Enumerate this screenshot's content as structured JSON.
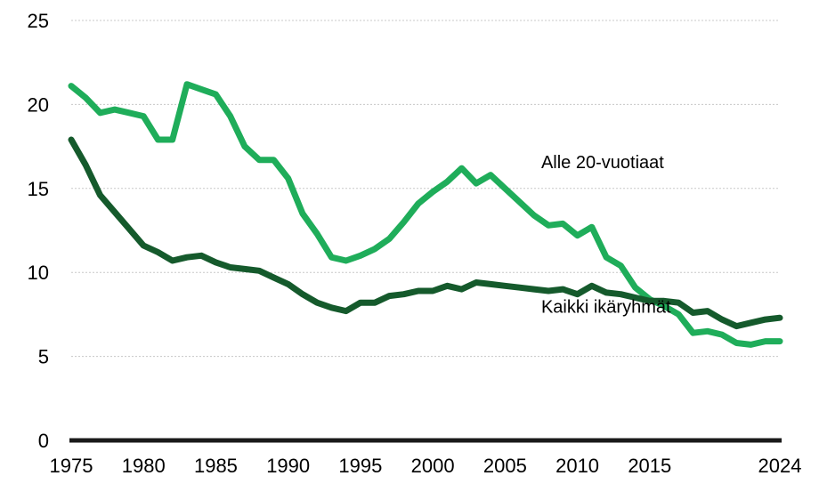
{
  "chart_data": {
    "type": "line",
    "title": "",
    "xlabel": "",
    "ylabel": "",
    "xlim": [
      1975,
      2024
    ],
    "ylim": [
      0,
      25
    ],
    "y_ticks": [
      0,
      5,
      10,
      15,
      20,
      25
    ],
    "x_tick_labels": [
      "1975",
      "1980",
      "1985",
      "1990",
      "1995",
      "2000",
      "2005",
      "2010",
      "2015",
      "2024"
    ],
    "x_tick_years": [
      1975,
      1980,
      1985,
      1990,
      1995,
      2000,
      2005,
      2010,
      2015,
      2024
    ],
    "grid": true,
    "legend": "none",
    "series": [
      {
        "name": "Alle 20-vuotiaat",
        "color": "#1fad5a",
        "x": [
          1975,
          1976,
          1977,
          1978,
          1979,
          1980,
          1981,
          1982,
          1983,
          1984,
          1985,
          1986,
          1987,
          1988,
          1989,
          1990,
          1991,
          1992,
          1993,
          1994,
          1995,
          1996,
          1997,
          1998,
          1999,
          2000,
          2001,
          2002,
          2003,
          2004,
          2005,
          2006,
          2007,
          2008,
          2009,
          2010,
          2011,
          2012,
          2013,
          2014,
          2015,
          2016,
          2017,
          2018,
          2019,
          2020,
          2021,
          2022,
          2023,
          2024
        ],
        "values": [
          21.1,
          20.4,
          19.5,
          19.7,
          19.5,
          19.3,
          17.9,
          17.9,
          21.2,
          20.9,
          20.6,
          19.3,
          17.5,
          16.7,
          16.7,
          15.6,
          13.5,
          12.3,
          10.9,
          10.7,
          11.0,
          11.4,
          12.0,
          13.0,
          14.1,
          14.8,
          15.4,
          16.2,
          15.3,
          15.8,
          15.0,
          14.2,
          13.4,
          12.8,
          12.9,
          12.2,
          12.7,
          10.9,
          10.4,
          9.1,
          8.4,
          8.0,
          7.5,
          6.4,
          6.5,
          6.3,
          5.8,
          5.7,
          5.9,
          5.9
        ]
      },
      {
        "name": "Kaikki ikäryhmät",
        "color": "#155a2c",
        "x": [
          1975,
          1976,
          1977,
          1978,
          1979,
          1980,
          1981,
          1982,
          1983,
          1984,
          1985,
          1986,
          1987,
          1988,
          1989,
          1990,
          1991,
          1992,
          1993,
          1994,
          1995,
          1996,
          1997,
          1998,
          1999,
          2000,
          2001,
          2002,
          2003,
          2004,
          2005,
          2006,
          2007,
          2008,
          2009,
          2010,
          2011,
          2012,
          2013,
          2014,
          2015,
          2016,
          2017,
          2018,
          2019,
          2020,
          2021,
          2022,
          2023,
          2024
        ],
        "values": [
          17.9,
          16.4,
          14.6,
          13.6,
          12.6,
          11.6,
          11.2,
          10.7,
          10.9,
          11.0,
          10.6,
          10.3,
          10.2,
          10.1,
          9.7,
          9.3,
          8.7,
          8.2,
          7.9,
          7.7,
          8.2,
          8.2,
          8.6,
          8.7,
          8.9,
          8.9,
          9.2,
          9.0,
          9.4,
          9.3,
          9.2,
          9.1,
          9.0,
          8.9,
          9.0,
          8.7,
          9.2,
          8.8,
          8.7,
          8.5,
          8.3,
          8.3,
          8.2,
          7.6,
          7.7,
          7.2,
          6.8,
          7.0,
          7.2,
          7.3
        ]
      }
    ],
    "annotations": [
      {
        "text": "Alle 20-vuotiaat",
        "x": 2007.5,
        "y": 16.2
      },
      {
        "text": "Kaikki ikäryhmät",
        "x": 2007.5,
        "y": 7.6
      }
    ]
  }
}
